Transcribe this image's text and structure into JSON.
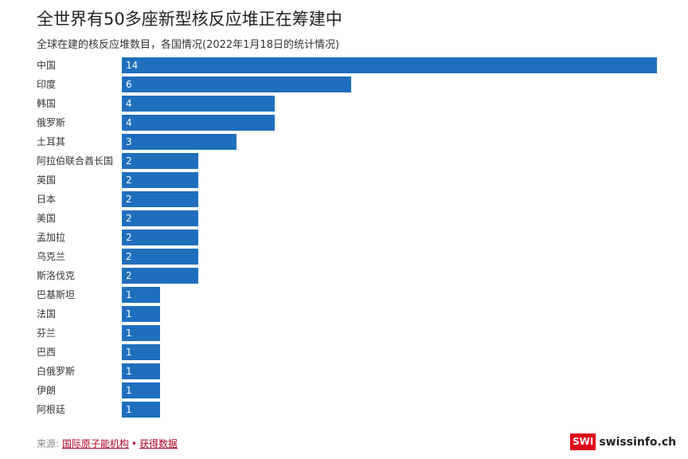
{
  "header": {
    "title": "全世界有50多座新型核反应堆正在筹建中",
    "subtitle": "全球在建的核反应堆数目，各国情况(2022年1月18日的统计情况)"
  },
  "footer": {
    "source_label": "来源: ",
    "source_link": "国际原子能机构",
    "separator": "•",
    "data_link": "获得数据"
  },
  "logo": {
    "badge": "SWI",
    "site": "swissinfo.ch",
    "badge_color": "#e1001a"
  },
  "colors": {
    "bar": "#1f6fbd",
    "bar_label": "#ffffff"
  },
  "chart_data": {
    "type": "bar",
    "orientation": "horizontal",
    "categories": [
      "中国",
      "印度",
      "韩国",
      "俄罗斯",
      "土耳其",
      "阿拉伯联合酋长国",
      "英国",
      "日本",
      "美国",
      "孟加拉",
      "乌克兰",
      "斯洛伐克",
      "巴基斯坦",
      "法国",
      "芬兰",
      "巴西",
      "白俄罗斯",
      "伊朗",
      "阿根廷"
    ],
    "values": [
      14,
      6,
      4,
      4,
      3,
      2,
      2,
      2,
      2,
      2,
      2,
      2,
      1,
      1,
      1,
      1,
      1,
      1,
      1
    ],
    "xlim": [
      0,
      14
    ],
    "grid": false,
    "data_labels": "inside-left"
  }
}
